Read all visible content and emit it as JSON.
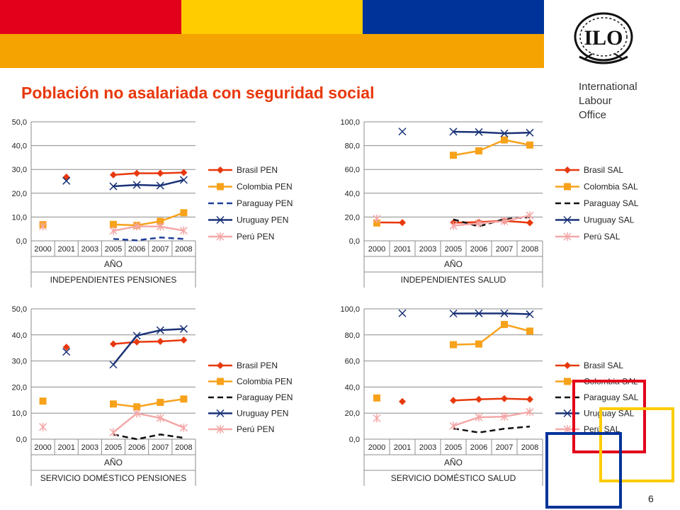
{
  "header": {
    "colors": [
      "#e2001a",
      "#ffcc00",
      "#003399",
      "#f5a300"
    ],
    "org_lines": [
      "International",
      "Labour",
      "Office"
    ],
    "logo_text": "ILO"
  },
  "title": "Población no asalariada con seguridad social",
  "page_number": "6",
  "chart_data": [
    {
      "type": "line",
      "categories": [
        "2000",
        "2001",
        "2003",
        "2005",
        "2006",
        "2007",
        "2008"
      ],
      "xlabel": "AÑO",
      "subtitle": "INDEPENDIENTES PENSIONES",
      "ylim": [
        0,
        50
      ],
      "yticks": [
        "0,0",
        "10,0",
        "20,0",
        "30,0",
        "40,0",
        "50,0"
      ],
      "grid": true,
      "legend": "right",
      "series": [
        {
          "name": "Brasil PEN",
          "color": "#e8380d",
          "marker": "diamond",
          "dash": false,
          "values": [
            null,
            26.8,
            null,
            27.7,
            28.4,
            28.4,
            28.7
          ]
        },
        {
          "name": "Colombia PEN",
          "color": "#f7a21b",
          "marker": "square",
          "dash": false,
          "values": [
            6.8,
            null,
            null,
            6.9,
            6.5,
            8.2,
            11.8
          ]
        },
        {
          "name": "Paraguay PEN",
          "color": "#1f3f99",
          "marker": "none",
          "dash": true,
          "values": [
            null,
            null,
            null,
            0.8,
            0.2,
            1.4,
            0.8
          ]
        },
        {
          "name": "Uruguay PEN",
          "color": "#1a3278",
          "marker": "x",
          "dash": false,
          "values": [
            null,
            25.2,
            null,
            22.9,
            23.5,
            23.2,
            25.6
          ]
        },
        {
          "name": "Perú PEN",
          "color": "#f4a8a8",
          "marker": "star",
          "dash": false,
          "values": [
            6.1,
            null,
            null,
            4.2,
            6.1,
            6.0,
            4.3
          ]
        }
      ]
    },
    {
      "type": "line",
      "categories": [
        "2000",
        "2001",
        "2003",
        "2005",
        "2006",
        "2007",
        "2008"
      ],
      "xlabel": "AÑO",
      "subtitle": "INDEPENDIENTES SALUD",
      "ylim": [
        0,
        100
      ],
      "yticks": [
        "0,0",
        "20,0",
        "40,0",
        "60,0",
        "80,0",
        "100,0"
      ],
      "grid": true,
      "legend": "right",
      "series": [
        {
          "name": "Brasil SAL",
          "color": "#e8380d",
          "marker": "diamond",
          "dash": false,
          "values": [
            15.5,
            15.3,
            null,
            15.2,
            15.8,
            16.8,
            15.2
          ]
        },
        {
          "name": "Colombia SAL",
          "color": "#f7a21b",
          "marker": "square",
          "dash": false,
          "values": [
            15.0,
            null,
            null,
            71.9,
            75.6,
            84.8,
            80.5
          ]
        },
        {
          "name": "Paraguay SAL",
          "color": "#111111",
          "marker": "none",
          "dash": true,
          "values": [
            null,
            null,
            null,
            18.0,
            12.1,
            18.3,
            19.9
          ]
        },
        {
          "name": "Uruguay SAL",
          "color": "#1a3278",
          "marker": "x",
          "dash": false,
          "values": [
            null,
            91.8,
            null,
            91.7,
            91.4,
            90.3,
            90.9
          ]
        },
        {
          "name": "Perú SAL",
          "color": "#f4a8a8",
          "marker": "star",
          "dash": false,
          "values": [
            18.5,
            null,
            null,
            12.7,
            14.7,
            16.5,
            21.3
          ]
        }
      ]
    },
    {
      "type": "line",
      "categories": [
        "2000",
        "2001",
        "2003",
        "2005",
        "2006",
        "2007",
        "2008"
      ],
      "xlabel": "AÑO",
      "subtitle": "SERVICIO DOMÉSTICO PENSIONES",
      "ylim": [
        0,
        50
      ],
      "yticks": [
        "0,0",
        "10,0",
        "20,0",
        "30,0",
        "40,0",
        "50,0"
      ],
      "grid": true,
      "legend": "right",
      "series": [
        {
          "name": "Brasil PEN",
          "color": "#e8380d",
          "marker": "diamond",
          "dash": false,
          "values": [
            null,
            35.3,
            null,
            36.5,
            37.3,
            37.5,
            38.0
          ]
        },
        {
          "name": "Colombia PEN",
          "color": "#f7a21b",
          "marker": "square",
          "dash": false,
          "values": [
            14.6,
            null,
            null,
            13.5,
            12.4,
            14.1,
            15.4
          ]
        },
        {
          "name": "Paraguay PEN",
          "color": "#111111",
          "marker": "none",
          "dash": true,
          "values": [
            null,
            null,
            null,
            1.8,
            0.0,
            1.8,
            0.5
          ]
        },
        {
          "name": "Uruguay PEN",
          "color": "#1a3278",
          "marker": "x",
          "dash": false,
          "values": [
            null,
            33.5,
            null,
            28.6,
            39.7,
            41.8,
            42.3
          ]
        },
        {
          "name": "Perú PEN",
          "color": "#f4a8a8",
          "marker": "star",
          "dash": false,
          "values": [
            4.7,
            null,
            null,
            2.6,
            9.9,
            8.1,
            4.4
          ]
        }
      ]
    },
    {
      "type": "line",
      "categories": [
        "2000",
        "2001",
        "2003",
        "2005",
        "2006",
        "2007",
        "2008"
      ],
      "xlabel": "AÑO",
      "subtitle": "SERVICIO DOMÉSTICO SALUD",
      "ylim": [
        0,
        100
      ],
      "yticks": [
        "0,0",
        "20,0",
        "40,0",
        "60,0",
        "80,0",
        "100,0"
      ],
      "grid": true,
      "legend": "right",
      "series": [
        {
          "name": "Brasil SAL",
          "color": "#e8380d",
          "marker": "diamond",
          "dash": false,
          "values": [
            null,
            28.9,
            null,
            29.7,
            30.6,
            31.1,
            30.6
          ]
        },
        {
          "name": "Colombia SAL",
          "color": "#f7a21b",
          "marker": "square",
          "dash": false,
          "values": [
            31.6,
            null,
            null,
            72.5,
            73.0,
            88.0,
            82.9
          ]
        },
        {
          "name": "Paraguay SAL",
          "color": "#111111",
          "marker": "none",
          "dash": true,
          "values": [
            null,
            null,
            null,
            8.2,
            5.1,
            8.0,
            9.7
          ]
        },
        {
          "name": "Uruguay SAL",
          "color": "#1a3278",
          "marker": "x",
          "dash": false,
          "values": [
            null,
            96.6,
            null,
            96.4,
            96.5,
            96.5,
            95.9
          ]
        },
        {
          "name": "Perú SAL",
          "color": "#f4a8a8",
          "marker": "star",
          "dash": false,
          "values": [
            16.1,
            null,
            null,
            10.2,
            16.8,
            17.3,
            20.9
          ]
        }
      ]
    }
  ]
}
